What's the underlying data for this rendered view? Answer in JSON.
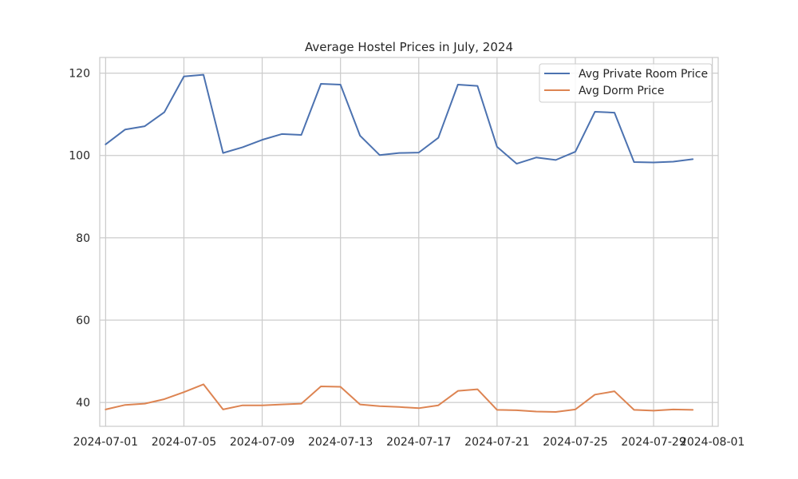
{
  "chart_data": {
    "type": "line",
    "title": "Average Hostel Prices in July, 2024",
    "xlabel": "",
    "ylabel": "",
    "x": [
      "2024-07-01",
      "2024-07-02",
      "2024-07-03",
      "2024-07-04",
      "2024-07-05",
      "2024-07-06",
      "2024-07-07",
      "2024-07-08",
      "2024-07-09",
      "2024-07-10",
      "2024-07-11",
      "2024-07-12",
      "2024-07-13",
      "2024-07-14",
      "2024-07-15",
      "2024-07-16",
      "2024-07-17",
      "2024-07-18",
      "2024-07-19",
      "2024-07-20",
      "2024-07-21",
      "2024-07-22",
      "2024-07-23",
      "2024-07-24",
      "2024-07-25",
      "2024-07-26",
      "2024-07-27",
      "2024-07-28",
      "2024-07-29",
      "2024-07-30",
      "2024-07-31"
    ],
    "xlim": [
      "2024-06-30T16:48",
      "2024-08-01T07:12"
    ],
    "xticks": [
      "2024-07-01",
      "2024-07-05",
      "2024-07-09",
      "2024-07-13",
      "2024-07-17",
      "2024-07-21",
      "2024-07-25",
      "2024-07-29",
      "2024-08-01"
    ],
    "ylim": [
      34.2,
      123.8
    ],
    "yticks": [
      40,
      60,
      80,
      100,
      120
    ],
    "grid": true,
    "legend_position": "top-right",
    "series": [
      {
        "name": "Avg Private Room Price",
        "color": "#4c72b0",
        "values": [
          102.7,
          106.3,
          107.1,
          110.5,
          119.2,
          119.6,
          100.6,
          102.0,
          103.8,
          105.2,
          105.0,
          117.4,
          117.2,
          104.8,
          100.1,
          100.6,
          100.7,
          104.3,
          117.2,
          116.9,
          102.1,
          98.0,
          99.5,
          98.9,
          100.9,
          110.6,
          110.4,
          98.4,
          98.3,
          98.5,
          99.1
        ]
      },
      {
        "name": "Avg Dorm Price",
        "color": "#dd8452",
        "values": [
          38.3,
          39.4,
          39.7,
          40.8,
          42.5,
          44.4,
          38.3,
          39.3,
          39.3,
          39.5,
          39.7,
          43.9,
          43.8,
          39.5,
          39.1,
          38.9,
          38.6,
          39.3,
          42.8,
          43.2,
          38.2,
          38.1,
          37.8,
          37.7,
          38.3,
          41.9,
          42.7,
          38.2,
          38.0,
          38.3,
          38.2
        ]
      }
    ]
  }
}
